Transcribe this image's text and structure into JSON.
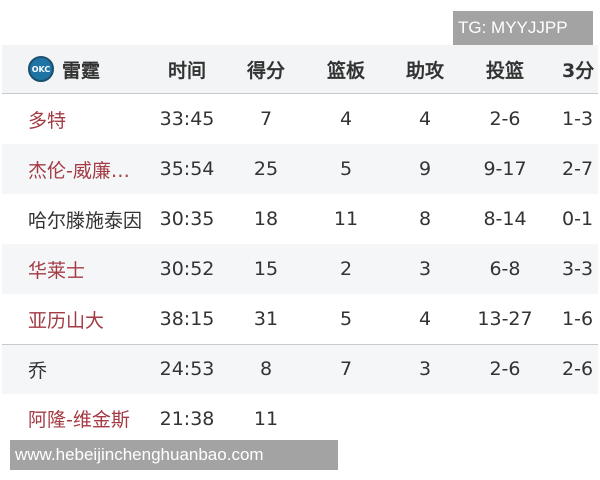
{
  "watermark_top": "TG: MYYJJPP",
  "watermark_bottom": "www.hebeijinchenghuanbao.com",
  "team": {
    "logo_text": "OKC",
    "name": "雷霆"
  },
  "columns": [
    "时间",
    "得分",
    "篮板",
    "助攻",
    "投篮",
    "3分"
  ],
  "rows": [
    {
      "name": "多特",
      "cells": [
        "33:45",
        "7",
        "4",
        "4",
        "2-6",
        "1-3"
      ]
    },
    {
      "name": "杰伦-威廉…",
      "cells": [
        "35:54",
        "25",
        "5",
        "9",
        "9-17",
        "2-7"
      ]
    },
    {
      "name": "哈尔滕施泰因",
      "cells": [
        "30:35",
        "18",
        "11",
        "8",
        "8-14",
        "0-1"
      ]
    },
    {
      "name": "华莱士",
      "cells": [
        "30:52",
        "15",
        "2",
        "3",
        "6-8",
        "3-3"
      ]
    },
    {
      "name": "亚历山大",
      "cells": [
        "38:15",
        "31",
        "5",
        "4",
        "13-27",
        "1-6"
      ]
    },
    {
      "name": "乔",
      "cells": [
        "24:53",
        "8",
        "7",
        "3",
        "2-6",
        "2-6"
      ]
    },
    {
      "name": "阿隆-维金斯",
      "cells": [
        "21:38",
        "11",
        "",
        "",
        "",
        ""
      ]
    }
  ],
  "colors": {
    "name_link": "#a43a44",
    "header_bg": "#f2f4f6",
    "watermark_bg": "#a3a3a3"
  }
}
